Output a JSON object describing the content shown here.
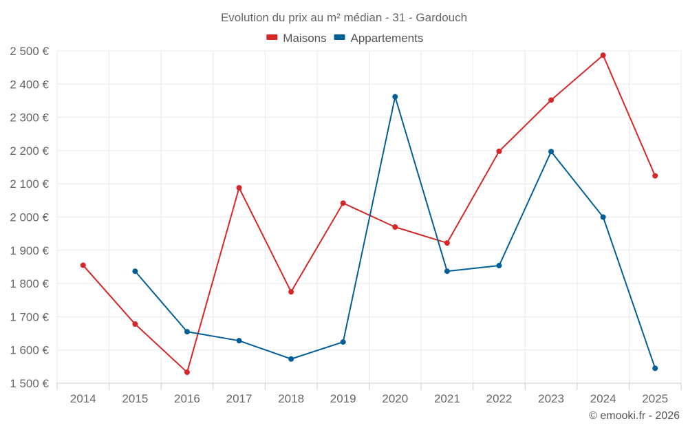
{
  "chart_data": {
    "type": "line",
    "title": "Evolution du prix au m² médian - 31 - Gardouch",
    "categories": [
      "2014",
      "2015",
      "2016",
      "2017",
      "2018",
      "2019",
      "2020",
      "2021",
      "2022",
      "2023",
      "2024",
      "2025"
    ],
    "ylim": [
      1500,
      2500
    ],
    "yticks": [
      1500,
      1600,
      1700,
      1800,
      1900,
      2000,
      2100,
      2200,
      2300,
      2400,
      2500
    ],
    "ytick_labels": [
      "1 500 €",
      "1 600 €",
      "1 700 €",
      "1 800 €",
      "1 900 €",
      "2 000 €",
      "2 100 €",
      "2 200 €",
      "2 300 €",
      "2 400 €",
      "2 500 €"
    ],
    "grid": true,
    "legend_position": "top-center",
    "series": [
      {
        "name": "Maisons",
        "color": "#d62728",
        "values": [
          1855,
          1678,
          1533,
          2088,
          1775,
          2042,
          1970,
          1922,
          2198,
          2352,
          2487,
          2124
        ]
      },
      {
        "name": "Appartements",
        "color": "#005f99",
        "values": [
          null,
          1837,
          1655,
          1628,
          1573,
          1624,
          2362,
          1837,
          1854,
          2197,
          2000,
          1545
        ]
      }
    ]
  },
  "credit": "© emooki.fr - 2026"
}
